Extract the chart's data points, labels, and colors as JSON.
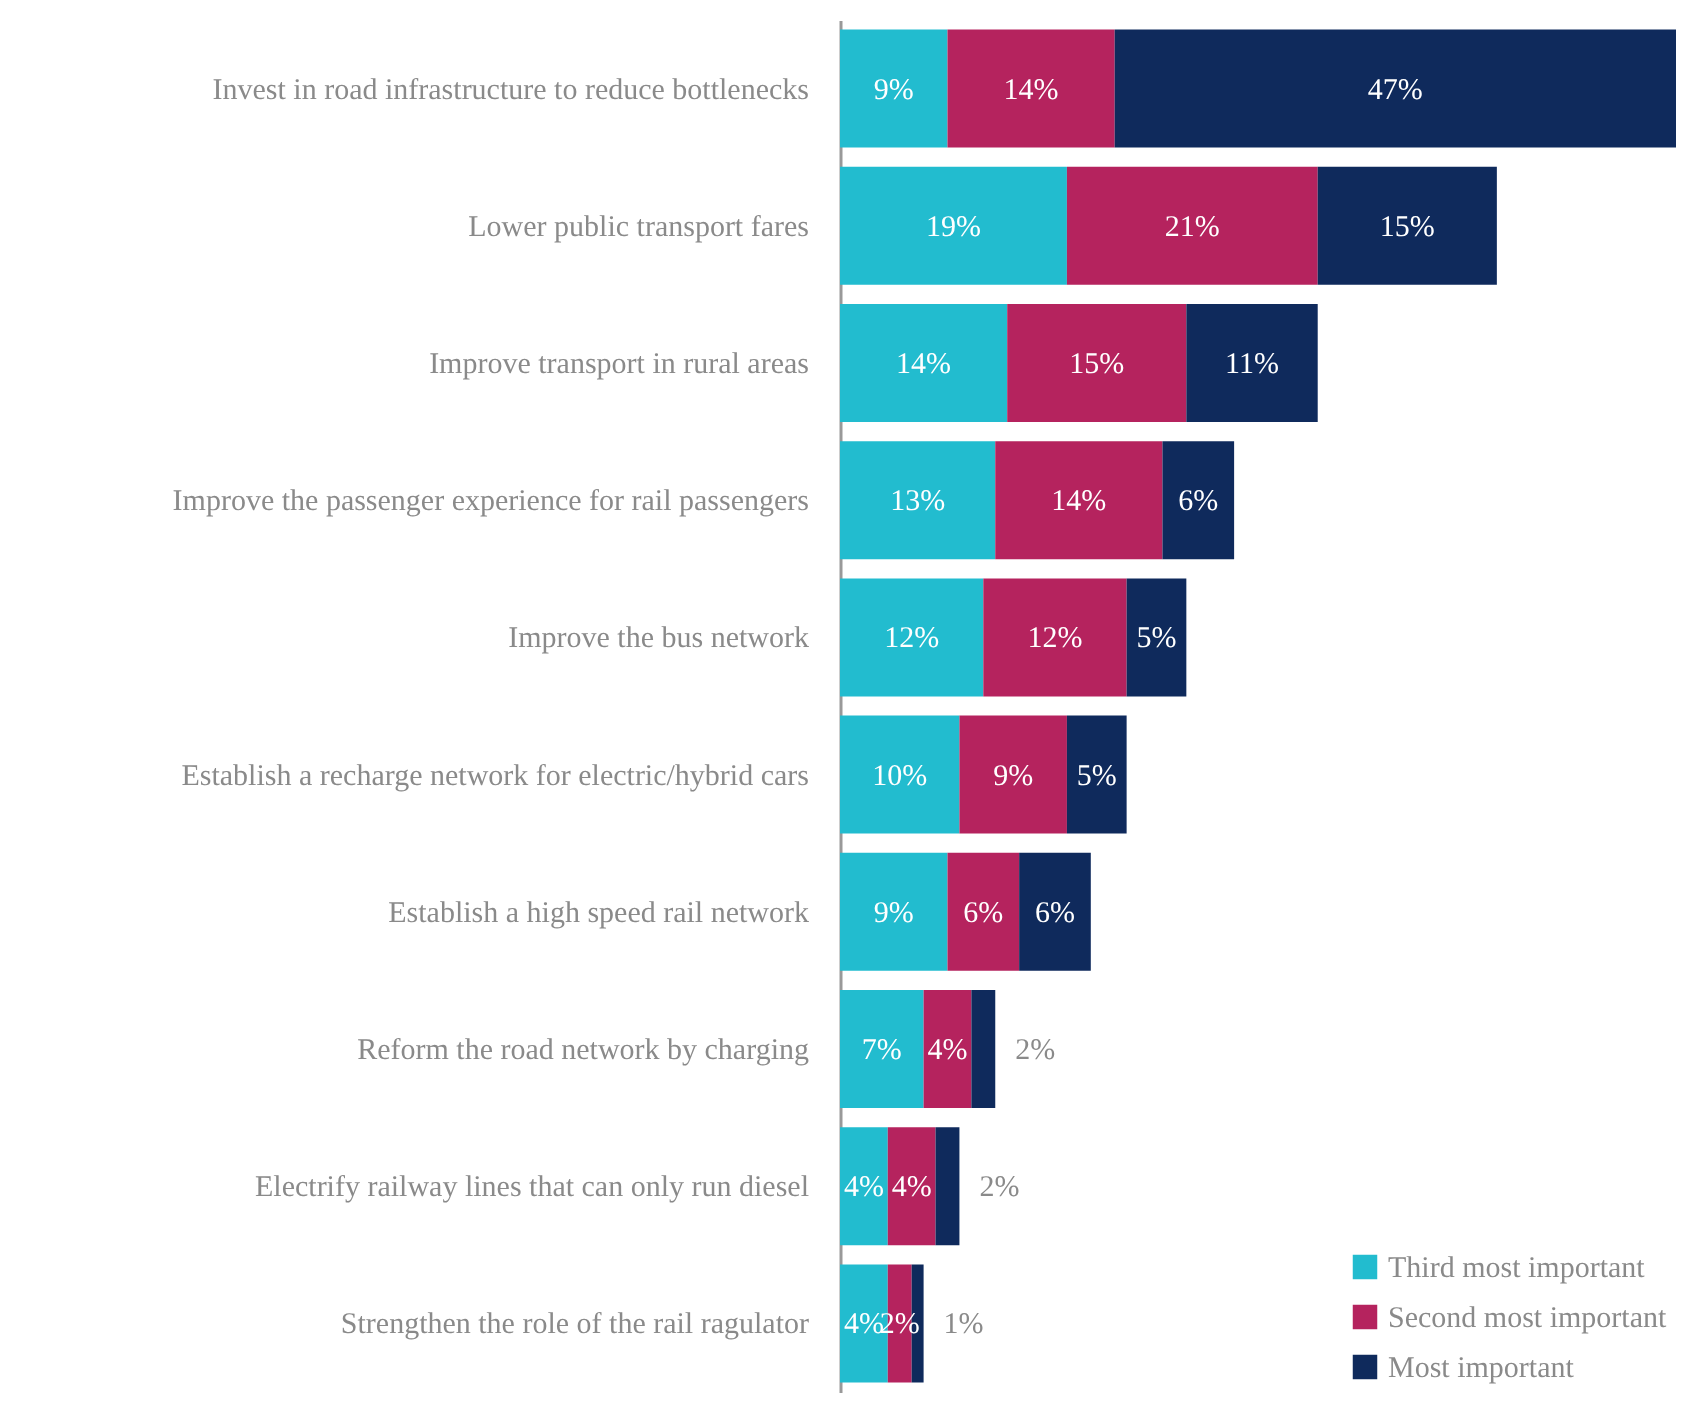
{
  "chart_data": {
    "type": "bar",
    "orientation": "horizontal",
    "stacked": true,
    "legend": "bottom right",
    "categories": [
      "Invest in road infrastructure to reduce bottlenecks",
      "Lower public transport fares",
      "Improve transport in rural areas",
      "Improve the passenger experience for  rail passengers",
      "Improve the bus network",
      "Establish a recharge network for electric/hybrid cars",
      "Establish a high speed rail network",
      "Reform the road network by charging",
      "Electrify railway lines that can only run diesel",
      "Strengthen the role of the rail ragulator"
    ],
    "series": [
      {
        "name": "Third most important",
        "color": "#22bccf",
        "values": [
          9,
          19,
          14,
          13,
          12,
          10,
          9,
          7,
          4,
          4
        ],
        "value_labels": [
          "9%",
          "19%",
          "14%",
          "13%",
          "12%",
          "10%",
          "9%",
          "7%",
          "4%",
          "4%"
        ]
      },
      {
        "name": "Second most important",
        "color": "#b5235e",
        "values": [
          14,
          21,
          15,
          14,
          12,
          9,
          6,
          4,
          4,
          2
        ],
        "value_labels": [
          "14%",
          "21%",
          "15%",
          "14%",
          "12%",
          "9%",
          "6%",
          "4%",
          "4%",
          "2%"
        ]
      },
      {
        "name": "Most important",
        "color": "#0f2a5c",
        "values": [
          47,
          15,
          11,
          6,
          5,
          5,
          6,
          2,
          2,
          1
        ],
        "value_labels": [
          "47%",
          "15%",
          "11%",
          "6%",
          "5%",
          "5%",
          "6%",
          "2%",
          "2%",
          "1%"
        ]
      }
    ]
  }
}
